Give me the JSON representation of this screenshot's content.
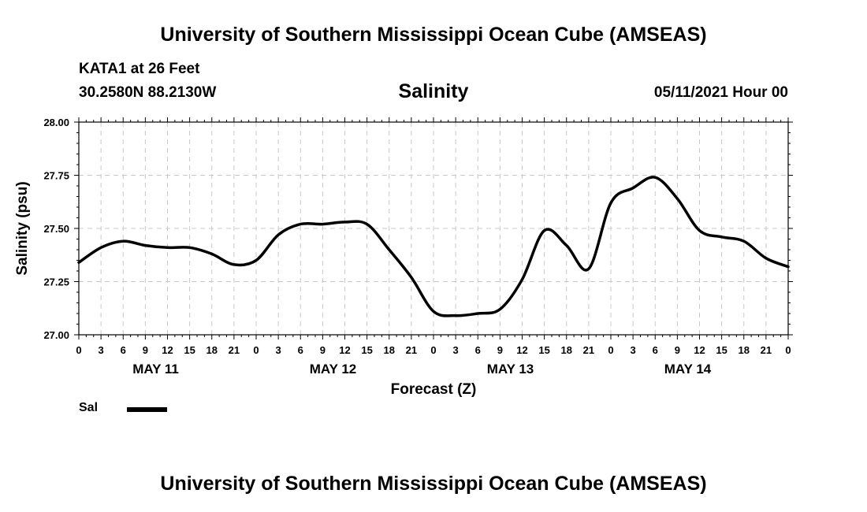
{
  "header": {
    "title_top": "University of Southern Mississippi Ocean Cube (AMSEAS)",
    "title_bottom": "University of Southern Mississippi Ocean Cube (AMSEAS)",
    "station": "KATA1 at 26 Feet",
    "coords": "30.2580N  88.2130W",
    "datetime": "05/11/2021 Hour 00"
  },
  "chart_data": {
    "type": "line",
    "title": "Salinity",
    "xlabel": "Forecast (Z)",
    "ylabel": "Salinity (psu)",
    "ylim": [
      27.0,
      28.0
    ],
    "xlim": [
      0,
      96
    ],
    "grid": true,
    "y_ticks": [
      "27.00",
      "27.25",
      "27.50",
      "27.75",
      "28.00"
    ],
    "x_tick_labels": [
      "0",
      "3",
      "6",
      "9",
      "12",
      "15",
      "18",
      "21",
      "0",
      "3",
      "6",
      "9",
      "12",
      "15",
      "18",
      "21",
      "0",
      "3",
      "6",
      "9",
      "12",
      "15",
      "18",
      "21",
      "0",
      "3",
      "6",
      "9",
      "12",
      "15",
      "18",
      "21",
      "0"
    ],
    "day_labels": [
      "MAY 11",
      "MAY 12",
      "MAY 13",
      "MAY 14"
    ],
    "legend_position": "bottom-left",
    "series": [
      {
        "name": "Sal",
        "color": "#000000",
        "x": [
          0,
          3,
          6,
          9,
          12,
          15,
          18,
          21,
          24,
          27,
          30,
          33,
          36,
          39,
          42,
          45,
          48,
          51,
          54,
          57,
          60,
          63,
          66,
          69,
          72,
          75,
          78,
          81,
          84,
          87,
          90,
          93,
          96
        ],
        "values": [
          27.34,
          27.41,
          27.44,
          27.42,
          27.41,
          27.41,
          27.38,
          27.33,
          27.35,
          27.47,
          27.52,
          27.52,
          27.53,
          27.52,
          27.4,
          27.27,
          27.11,
          27.09,
          27.1,
          27.12,
          27.26,
          27.49,
          27.42,
          27.31,
          27.62,
          27.69,
          27.74,
          27.64,
          27.49,
          27.46,
          27.44,
          27.36,
          27.32
        ]
      }
    ]
  }
}
